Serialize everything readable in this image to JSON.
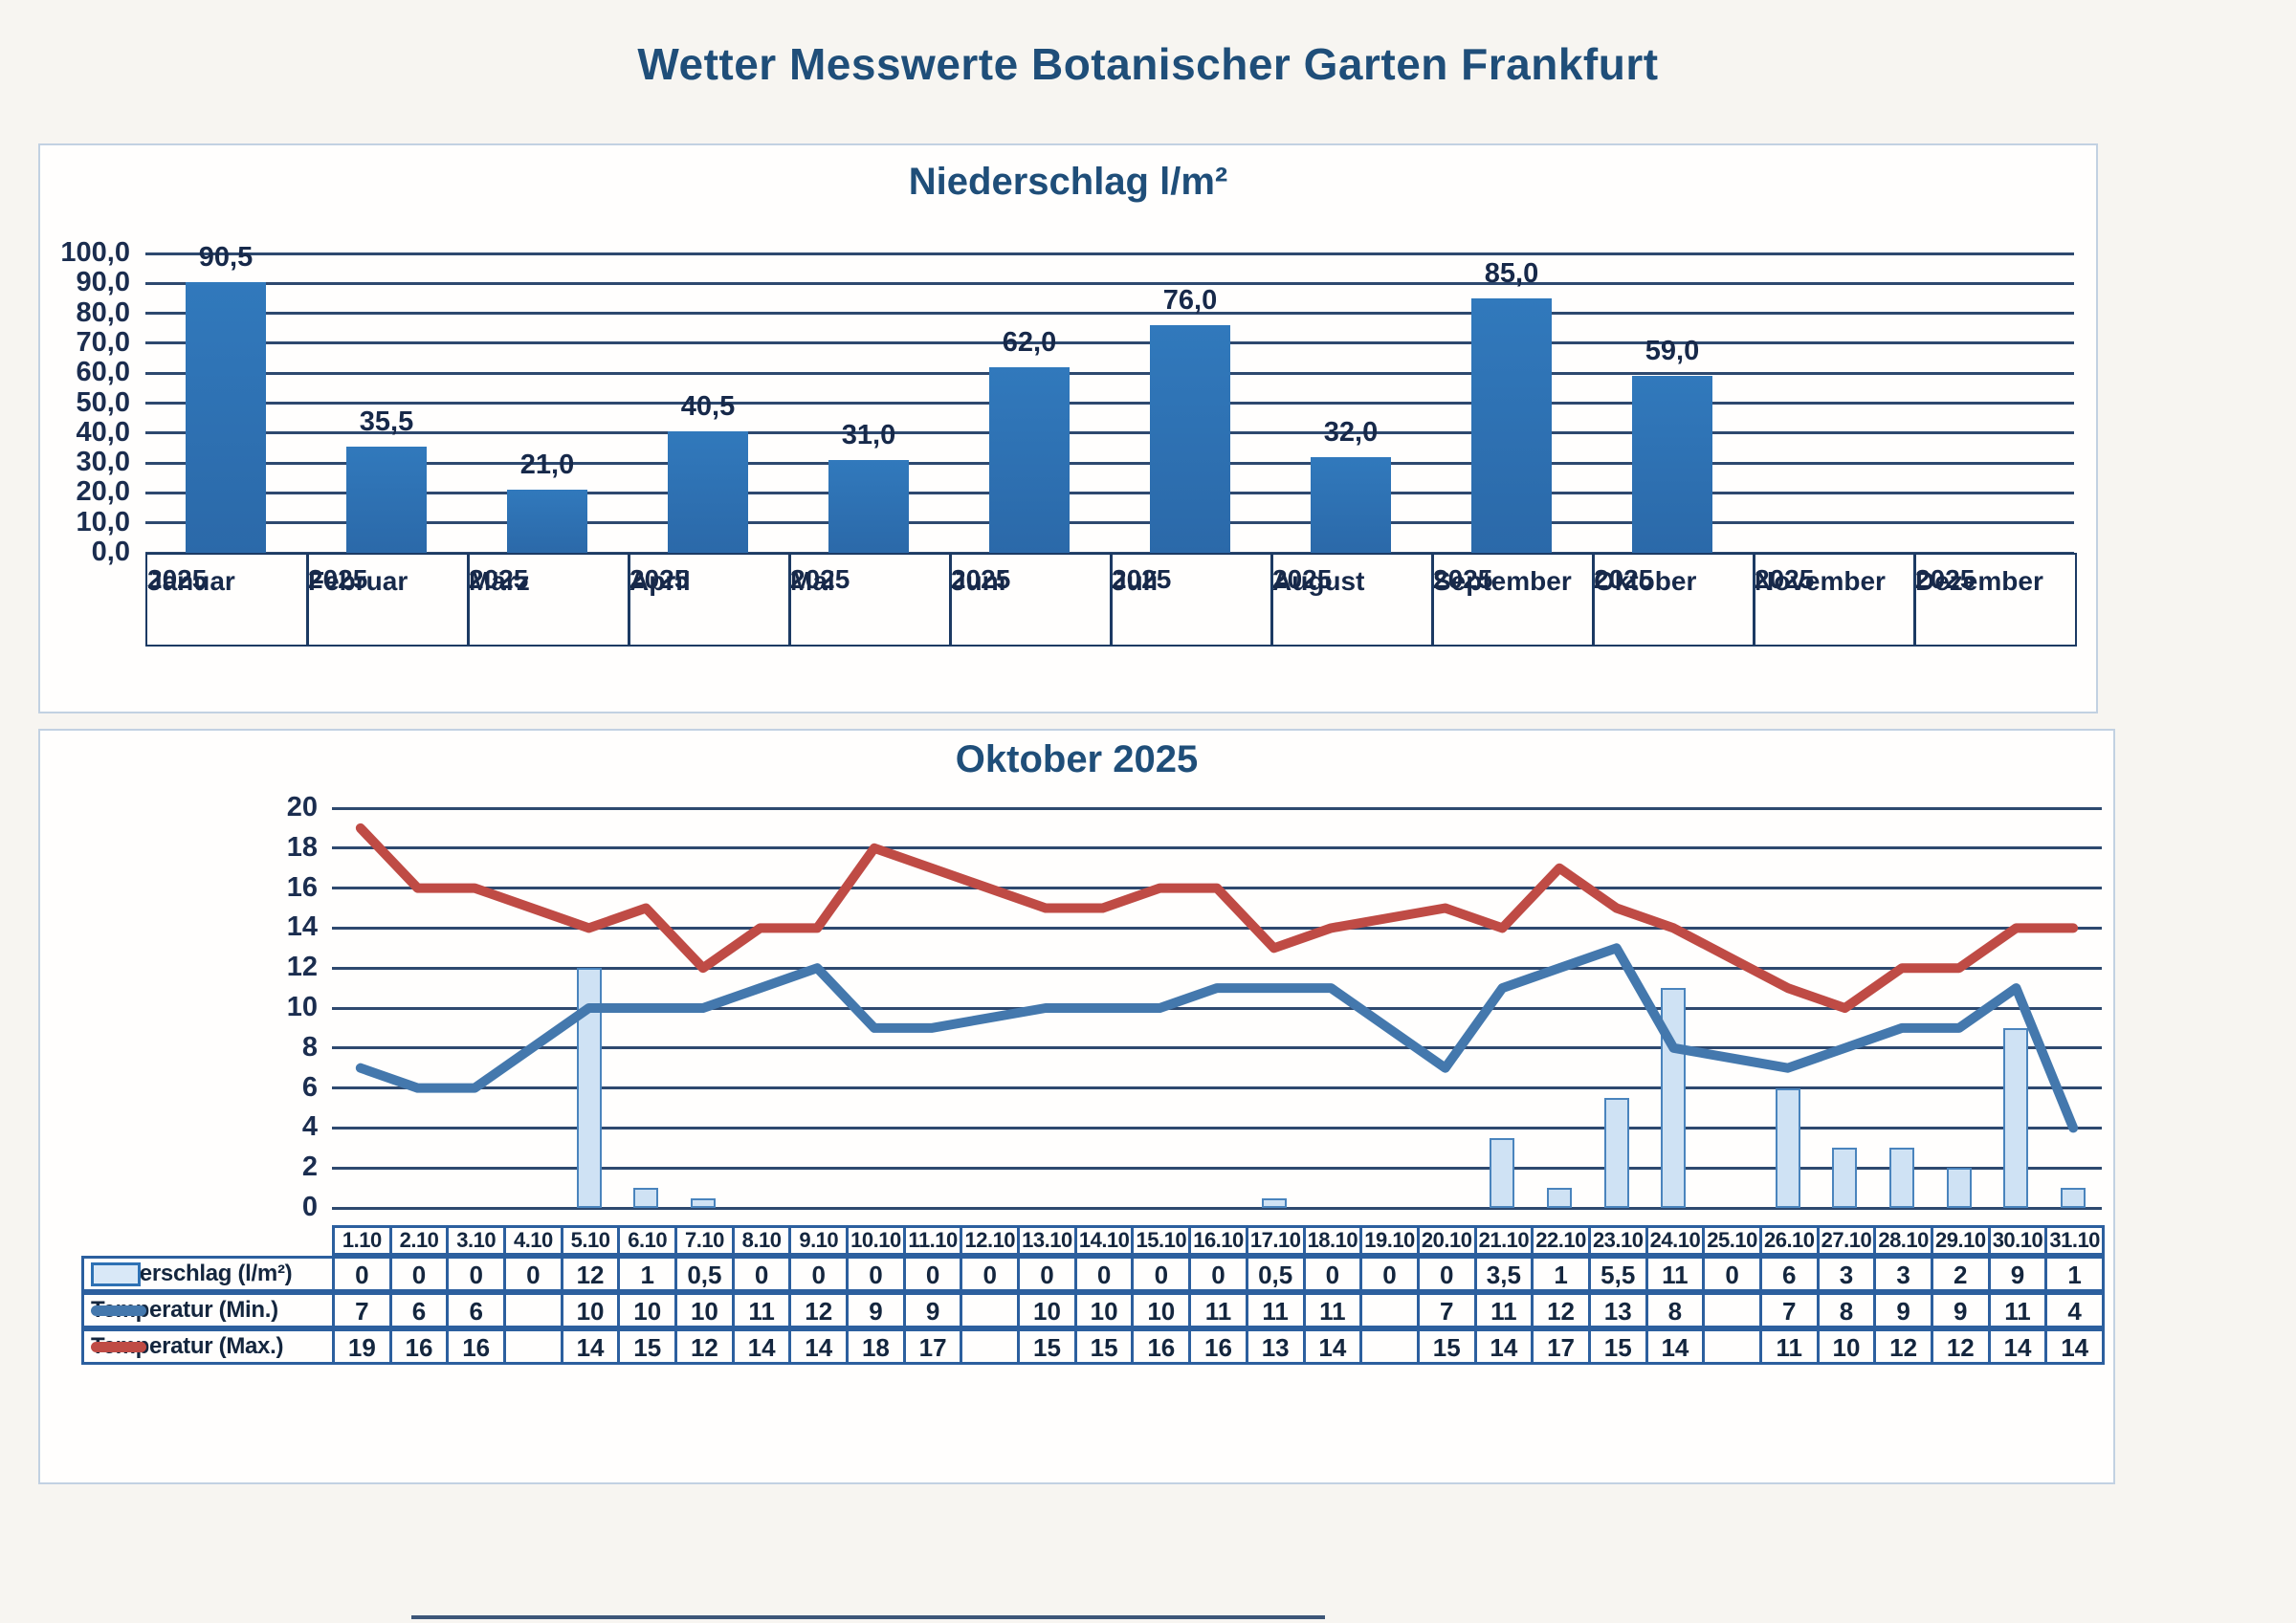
{
  "page": {
    "title": "Wetter Messwerte Botanischer Garten Frankfurt"
  },
  "colors": {
    "title_text": "#1f4e79",
    "axis_text": "#1b2d4f",
    "grid_line": "#1c3a63",
    "bar_fill_monthly": "#2e71b4",
    "bar_fill_daily": "#cfe2f4",
    "bar_border_daily": "#4a84bd",
    "temp_min_line": "#4478ad",
    "temp_max_line": "#bf4b45",
    "table_border": "#2c5f9e",
    "card_border": "#c2d1e2",
    "page_bg": "#f7f5f1"
  },
  "monthly_chart": {
    "title": "Niederschlag l/m²",
    "year_label": "2025",
    "y_tick_labels": [
      "100,0",
      "90,0",
      "80,0",
      "70,0",
      "60,0",
      "50,0",
      "40,0",
      "30,0",
      "20,0",
      "10,0",
      "0,0"
    ]
  },
  "daily_chart": {
    "title": "Oktober 2025",
    "y_tick_labels": [
      "20",
      "18",
      "16",
      "14",
      "12",
      "10",
      "8",
      "6",
      "4",
      "2",
      "0"
    ]
  },
  "table": {
    "rows": [
      {
        "label": "Niederschlag (l/m²)",
        "legend": "bar",
        "values": [
          "0",
          "0",
          "0",
          "0",
          "12",
          "1",
          "0,5",
          "0",
          "0",
          "0",
          "0",
          "0",
          "0",
          "0",
          "0",
          "0",
          "0,5",
          "0",
          "0",
          "0",
          "3,5",
          "1",
          "5,5",
          "11",
          "0",
          "6",
          "3",
          "3",
          "2",
          "9",
          "1"
        ]
      },
      {
        "label": "Temperatur (Min.)",
        "legend": "line-min",
        "values": [
          "7",
          "6",
          "6",
          "",
          "10",
          "10",
          "10",
          "11",
          "12",
          "9",
          "9",
          "",
          "10",
          "10",
          "10",
          "11",
          "11",
          "11",
          "",
          "7",
          "11",
          "12",
          "13",
          "8",
          "",
          "7",
          "8",
          "9",
          "9",
          "11",
          "4"
        ]
      },
      {
        "label": "Temperatur (Max.)",
        "legend": "line-max",
        "values": [
          "19",
          "16",
          "16",
          "",
          "14",
          "15",
          "12",
          "14",
          "14",
          "18",
          "17",
          "",
          "15",
          "15",
          "16",
          "16",
          "13",
          "14",
          "",
          "15",
          "14",
          "17",
          "15",
          "14",
          "",
          "11",
          "10",
          "12",
          "12",
          "14",
          "14"
        ]
      }
    ]
  },
  "chart_data": [
    {
      "type": "bar",
      "title": "Niederschlag l/m²",
      "categories": [
        "Januar",
        "Februar",
        "März",
        "April",
        "Mai",
        "Juni",
        "Juli",
        "August",
        "September",
        "Oktober",
        "November",
        "Dezember"
      ],
      "year": "2025",
      "values": [
        90.5,
        35.5,
        21.0,
        40.5,
        31.0,
        62.0,
        76.0,
        32.0,
        85.0,
        59.0,
        null,
        null
      ],
      "data_labels": [
        "90,5",
        "35,5",
        "21,0",
        "40,5",
        "31,0",
        "62,0",
        "76,0",
        "32,0",
        "85,0",
        "59,0",
        "",
        ""
      ],
      "xlabel": "",
      "ylabel": "",
      "ylim": [
        0,
        100
      ],
      "ytick_step": 10,
      "grid": true,
      "legend_position": "none"
    },
    {
      "type": "combo bar+line",
      "title": "Oktober 2025",
      "x": [
        "1.10",
        "2.10",
        "3.10",
        "4.10",
        "5.10",
        "6.10",
        "7.10",
        "8.10",
        "9.10",
        "10.10",
        "11.10",
        "12.10",
        "13.10",
        "14.10",
        "15.10",
        "16.10",
        "17.10",
        "18.10",
        "19.10",
        "20.10",
        "21.10",
        "22.10",
        "23.10",
        "24.10",
        "25.10",
        "26.10",
        "27.10",
        "28.10",
        "29.10",
        "30.10",
        "31.10"
      ],
      "series": [
        {
          "name": "Niederschlag (l/m²)",
          "type": "bar",
          "values": [
            0,
            0,
            0,
            0,
            12,
            1,
            0.5,
            0,
            0,
            0,
            0,
            0,
            0,
            0,
            0,
            0,
            0.5,
            0,
            0,
            0,
            3.5,
            1,
            5.5,
            11,
            0,
            6,
            3,
            3,
            2,
            9,
            1
          ]
        },
        {
          "name": "Temperatur (Min.)",
          "type": "line",
          "values": [
            7,
            6,
            6,
            null,
            10,
            10,
            10,
            11,
            12,
            9,
            9,
            null,
            10,
            10,
            10,
            11,
            11,
            11,
            null,
            7,
            11,
            12,
            13,
            8,
            null,
            7,
            8,
            9,
            9,
            11,
            4
          ]
        },
        {
          "name": "Temperatur (Max.)",
          "type": "line",
          "values": [
            19,
            16,
            16,
            null,
            14,
            15,
            12,
            14,
            14,
            18,
            17,
            null,
            15,
            15,
            16,
            16,
            13,
            14,
            null,
            15,
            14,
            17,
            15,
            14,
            null,
            11,
            10,
            12,
            12,
            14,
            14
          ]
        }
      ],
      "ylim": [
        0,
        20
      ],
      "ytick_step": 2,
      "grid": true,
      "legend_position": "table-row-headers",
      "gaps_bridged": true
    }
  ]
}
